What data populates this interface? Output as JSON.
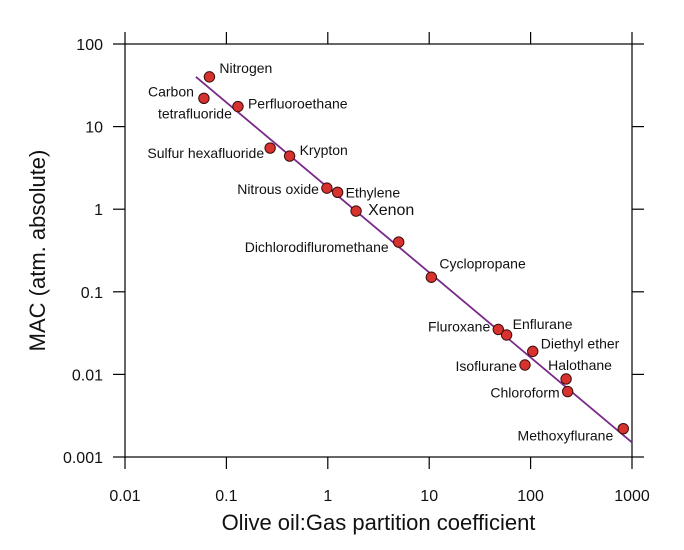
{
  "chart_data": {
    "type": "scatter",
    "xlabel": "Olive oil:Gas partition coefficient",
    "ylabel": "MAC (atm. absolute)",
    "x_scale": "log",
    "y_scale": "log",
    "xlim": [
      0.01,
      1000
    ],
    "ylim": [
      0.001,
      100
    ],
    "x_ticks": [
      {
        "value": 0.01,
        "label": "0.01"
      },
      {
        "value": 0.1,
        "label": "0.1"
      },
      {
        "value": 1,
        "label": "1"
      },
      {
        "value": 10,
        "label": "10"
      },
      {
        "value": 100,
        "label": "100"
      },
      {
        "value": 1000,
        "label": "1000"
      }
    ],
    "y_ticks": [
      {
        "value": 0.001,
        "label": "0.001"
      },
      {
        "value": 0.01,
        "label": "0.01"
      },
      {
        "value": 0.1,
        "label": "0.1"
      },
      {
        "value": 1,
        "label": "1"
      },
      {
        "value": 10,
        "label": "10"
      },
      {
        "value": 100,
        "label": "100"
      }
    ],
    "grid": false,
    "point_color": "#d7322e",
    "line_color": "#7a2a8a",
    "fit_line": {
      "x": [
        0.05,
        1000
      ],
      "y": [
        40,
        0.0015
      ]
    },
    "points": [
      {
        "name": "Nitrogen",
        "x": 0.068,
        "y": 40
      },
      {
        "name": "Carbon\ntetrafluoride",
        "x": 0.06,
        "y": 22
      },
      {
        "name": "Perfluoroethane",
        "x": 0.13,
        "y": 17.5
      },
      {
        "name": "Sulfur hexafluoride",
        "x": 0.27,
        "y": 5.5
      },
      {
        "name": "Krypton",
        "x": 0.42,
        "y": 4.4
      },
      {
        "name": "Nitrous oxide",
        "x": 0.98,
        "y": 1.8
      },
      {
        "name": "Ethylene",
        "x": 1.25,
        "y": 1.6
      },
      {
        "name": "Xenon",
        "x": 1.9,
        "y": 0.95
      },
      {
        "name": "Dichlorodifluromethane",
        "x": 5.0,
        "y": 0.4
      },
      {
        "name": "Cyclopropane",
        "x": 10.5,
        "y": 0.15
      },
      {
        "name": "Fluroxane",
        "x": 48,
        "y": 0.035
      },
      {
        "name": "Enflurane",
        "x": 58,
        "y": 0.03
      },
      {
        "name": "Diethyl ether",
        "x": 105,
        "y": 0.019
      },
      {
        "name": "Isoflurane",
        "x": 88,
        "y": 0.013
      },
      {
        "name": "Halothane",
        "x": 224,
        "y": 0.0088
      },
      {
        "name": "Chloroform",
        "x": 232,
        "y": 0.0062
      },
      {
        "name": "Methoxyflurane",
        "x": 820,
        "y": 0.0022
      }
    ]
  }
}
